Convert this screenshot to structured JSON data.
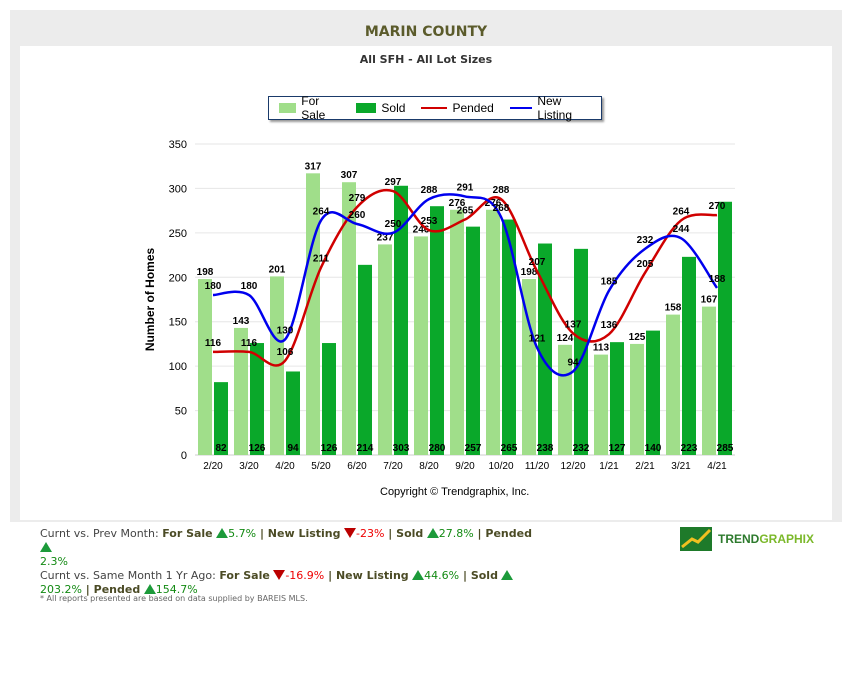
{
  "header": {
    "title": "MARIN COUNTY",
    "subtitle": "All SFH - All Lot Sizes"
  },
  "chart_data": {
    "type": "bar",
    "title": "MARIN COUNTY",
    "subtitle": "All SFH - All Lot Sizes",
    "ylabel": "Number of Homes",
    "xlabel": "",
    "ylim": [
      0,
      350
    ],
    "yticks": [
      0,
      50,
      100,
      150,
      200,
      250,
      300,
      350
    ],
    "legend_position": "top-center",
    "grid": true,
    "categories": [
      "2/20",
      "3/20",
      "4/20",
      "5/20",
      "6/20",
      "7/20",
      "8/20",
      "9/20",
      "10/20",
      "11/20",
      "12/20",
      "1/21",
      "2/21",
      "3/21",
      "4/21"
    ],
    "series": [
      {
        "name": "For Sale",
        "kind": "bar",
        "color": "#a0de8a",
        "values": [
          198,
          143,
          201,
          317,
          307,
          237,
          246,
          276,
          276,
          198,
          124,
          113,
          125,
          158,
          167
        ]
      },
      {
        "name": "Sold",
        "kind": "bar",
        "color": "#0aa82a",
        "values": [
          82,
          126,
          94,
          126,
          214,
          303,
          280,
          257,
          265,
          238,
          232,
          127,
          140,
          223,
          285
        ]
      },
      {
        "name": "Pended",
        "kind": "line",
        "color": "#d00000",
        "values": [
          116,
          116,
          106,
          211,
          279,
          297,
          253,
          265,
          288,
          207,
          137,
          136,
          205,
          264,
          270
        ]
      },
      {
        "name": "New Listing",
        "kind": "line",
        "color": "#0000ee",
        "values": [
          180,
          180,
          130,
          264,
          260,
          250,
          288,
          291,
          268,
          121,
          94,
          185,
          232,
          244,
          188
        ]
      }
    ]
  },
  "copyright": "Copyright © Trendgraphix, Inc.",
  "stats": {
    "prev_label": "Curnt vs. Prev Month:",
    "same_label": "Curnt vs. Same Month 1 Yr Ago:",
    "for_sale": "For Sale",
    "new_listing": "New Listing",
    "sold": "Sold",
    "pended": "Pended",
    "sep": " | ",
    "prev": {
      "for_sale": "5.7%",
      "new_listing": "-23%",
      "sold": "27.8%",
      "pended": "2.3%"
    },
    "same": {
      "for_sale": "-16.9%",
      "new_listing": "44.6%",
      "sold": "203.2%",
      "pended": "154.7%"
    }
  },
  "note": "* All reports presented are based on data supplied by BAREIS MLS.",
  "logo": {
    "a": "TREND",
    "b": "GRAPHIX"
  }
}
